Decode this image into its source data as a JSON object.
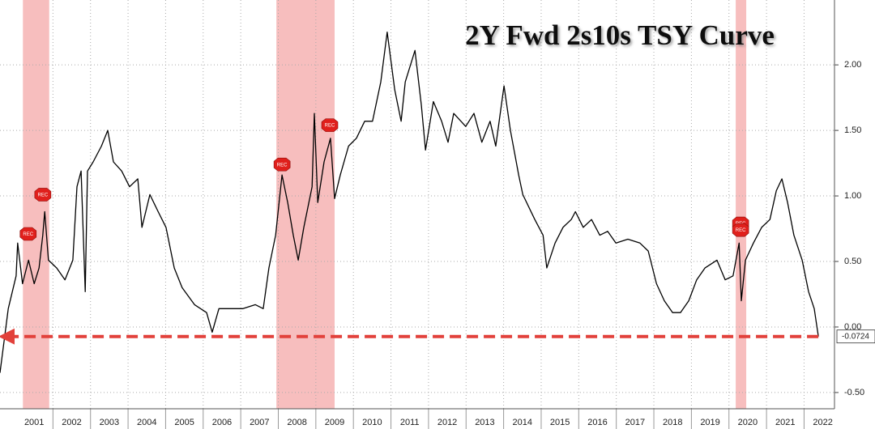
{
  "chart_data": {
    "type": "line",
    "title": "2Y Fwd 2s10s TSY Curve",
    "x": [
      2000.59,
      2000.81,
      2001.02,
      2001.06,
      2001.19,
      2001.35,
      2001.5,
      2001.63,
      2001.73,
      2001.78,
      2001.88,
      2002.1,
      2002.32,
      2002.53,
      2002.64,
      2002.75,
      2002.86,
      2002.92,
      2003.07,
      2003.29,
      2003.46,
      2003.61,
      2003.83,
      2004.04,
      2004.26,
      2004.37,
      2004.58,
      2004.8,
      2005.01,
      2005.23,
      2005.44,
      2005.77,
      2006.09,
      2006.24,
      2006.42,
      2006.74,
      2007.06,
      2007.39,
      2007.6,
      2007.75,
      2007.93,
      2008.1,
      2008.25,
      2008.4,
      2008.53,
      2008.68,
      2008.9,
      2008.96,
      2009.05,
      2009.22,
      2009.39,
      2009.5,
      2009.65,
      2009.87,
      2010.08,
      2010.3,
      2010.51,
      2010.73,
      2010.9,
      2011.1,
      2011.27,
      2011.38,
      2011.64,
      2011.81,
      2011.92,
      2012.13,
      2012.35,
      2012.52,
      2012.67,
      2012.99,
      2013.21,
      2013.42,
      2013.64,
      2013.79,
      2014.01,
      2014.18,
      2014.4,
      2014.51,
      2014.83,
      2015.05,
      2015.15,
      2015.37,
      2015.58,
      2015.8,
      2015.91,
      2016.12,
      2016.34,
      2016.56,
      2016.77,
      2016.99,
      2017.31,
      2017.63,
      2017.85,
      2018.07,
      2018.28,
      2018.5,
      2018.71,
      2018.93,
      2019.14,
      2019.36,
      2019.68,
      2019.9,
      2020.11,
      2020.27,
      2020.33,
      2020.44,
      2020.65,
      2020.87,
      2021.09,
      2021.26,
      2021.41,
      2021.56,
      2021.73,
      2021.95,
      2022.12,
      2022.27,
      2022.38
    ],
    "series": [
      {
        "color": "#000000",
        "values": [
          -0.35,
          0.14,
          0.39,
          0.64,
          0.33,
          0.51,
          0.33,
          0.45,
          0.7,
          0.88,
          0.51,
          0.45,
          0.36,
          0.51,
          1.07,
          1.19,
          0.27,
          1.19,
          1.26,
          1.38,
          1.5,
          1.26,
          1.19,
          1.07,
          1.13,
          0.76,
          1.01,
          0.88,
          0.76,
          0.45,
          0.3,
          0.17,
          0.11,
          -0.04,
          0.14,
          0.14,
          0.14,
          0.17,
          0.14,
          0.45,
          0.7,
          1.16,
          0.95,
          0.7,
          0.51,
          0.76,
          1.07,
          1.63,
          0.95,
          1.26,
          1.44,
          0.98,
          1.16,
          1.38,
          1.44,
          1.57,
          1.57,
          1.87,
          2.25,
          1.81,
          1.57,
          1.87,
          2.11,
          1.69,
          1.35,
          1.72,
          1.57,
          1.41,
          1.63,
          1.53,
          1.63,
          1.41,
          1.57,
          1.38,
          1.84,
          1.5,
          1.16,
          1.01,
          0.82,
          0.7,
          0.45,
          0.64,
          0.76,
          0.82,
          0.88,
          0.76,
          0.82,
          0.7,
          0.73,
          0.64,
          0.67,
          0.64,
          0.58,
          0.33,
          0.2,
          0.11,
          0.11,
          0.2,
          0.36,
          0.45,
          0.51,
          0.36,
          0.39,
          0.64,
          0.2,
          0.51,
          0.64,
          0.76,
          0.82,
          1.04,
          1.13,
          0.95,
          0.7,
          0.51,
          0.27,
          0.14,
          -0.0724
        ]
      }
    ],
    "xlim": [
      2000.59,
      2022.81
    ],
    "xticks": [
      {
        "value": 2001.5,
        "label": "2001"
      },
      {
        "value": 2002.5,
        "label": "2002"
      },
      {
        "value": 2003.5,
        "label": "2003"
      },
      {
        "value": 2004.5,
        "label": "2004"
      },
      {
        "value": 2005.5,
        "label": "2005"
      },
      {
        "value": 2006.5,
        "label": "2006"
      },
      {
        "value": 2007.5,
        "label": "2007"
      },
      {
        "value": 2008.5,
        "label": "2008"
      },
      {
        "value": 2009.5,
        "label": "2009"
      },
      {
        "value": 2010.5,
        "label": "2010"
      },
      {
        "value": 2011.5,
        "label": "2011"
      },
      {
        "value": 2012.5,
        "label": "2012"
      },
      {
        "value": 2013.5,
        "label": "2013"
      },
      {
        "value": 2014.5,
        "label": "2014"
      },
      {
        "value": 2015.5,
        "label": "2015"
      },
      {
        "value": 2016.5,
        "label": "2016"
      },
      {
        "value": 2017.5,
        "label": "2017"
      },
      {
        "value": 2018.5,
        "label": "2018"
      },
      {
        "value": 2019.5,
        "label": "2019"
      },
      {
        "value": 2020.5,
        "label": "2020"
      },
      {
        "value": 2021.5,
        "label": "2021"
      },
      {
        "value": 2022.5,
        "label": "2022"
      }
    ],
    "ylim": [
      -0.624,
      2.495
    ],
    "yticks": [
      {
        "value": -0.5,
        "label": "-0.50"
      },
      {
        "value": 0,
        "label": "0.00"
      },
      {
        "value": 0.5,
        "label": "0.50"
      },
      {
        "value": 1,
        "label": "1.00"
      },
      {
        "value": 1.5,
        "label": "1.50"
      },
      {
        "value": 2,
        "label": "2.00"
      }
    ],
    "grid": true,
    "shaded_regions": [
      [
        2001.2,
        2001.9
      ],
      [
        2007.95,
        2009.5
      ],
      [
        2020.18,
        2020.46
      ]
    ],
    "shade_color": "#f6b3b3",
    "annotations": [
      {
        "text": "REC",
        "x": 2001.34,
        "y": 0.71
      },
      {
        "text": "REC",
        "x": 2001.73,
        "y": 1.01
      },
      {
        "text": "REC",
        "x": 2008.1,
        "y": 1.24
      },
      {
        "text": "REC",
        "x": 2009.37,
        "y": 1.54
      },
      {
        "text": "REC",
        "x": 2020.31,
        "y": 0.79
      },
      {
        "text": "REC",
        "x": 2020.31,
        "y": 0.74
      }
    ],
    "reference_line": -0.0724,
    "reference_color": "#e2413b"
  }
}
